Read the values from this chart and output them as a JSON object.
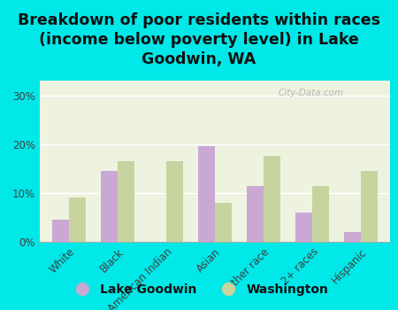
{
  "title": "Breakdown of poor residents within races\n(income below poverty level) in Lake\nGoodwin, WA",
  "categories": [
    "White",
    "Black",
    "American Indian",
    "Asian",
    "Other race",
    "2+ races",
    "Hispanic"
  ],
  "lake_goodwin": [
    4.5,
    14.5,
    0.0,
    19.5,
    11.5,
    6.0,
    2.0
  ],
  "washington": [
    9.0,
    16.5,
    16.5,
    8.0,
    17.5,
    11.5,
    14.5
  ],
  "bar_color_lg": "#c9a8d4",
  "bar_color_wa": "#c8d4a0",
  "bg_color": "#00e8e8",
  "plot_bg_color": "#eef3e0",
  "ylabel_ticks": [
    "0%",
    "10%",
    "20%",
    "30%"
  ],
  "yticks": [
    0,
    10,
    20,
    30
  ],
  "ylim": [
    0,
    33
  ],
  "watermark": "City-Data.com",
  "legend_label_lg": "Lake Goodwin",
  "legend_label_wa": "Washington",
  "title_fontsize": 12.5,
  "tick_fontsize": 8.5,
  "legend_fontsize": 10
}
